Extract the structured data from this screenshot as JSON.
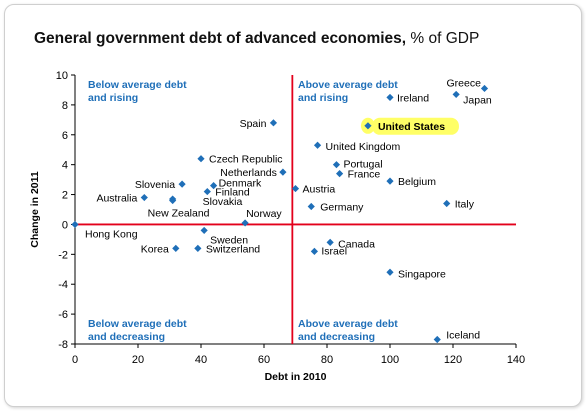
{
  "title": "General government debt of advanced economies,",
  "title_unit": "% of GDP",
  "chart_data": {
    "type": "scatter",
    "title": "General government debt of advanced economies, % of GDP",
    "xlabel": "Debt in 2010",
    "ylabel": "Change in 2011",
    "xlim": [
      0,
      140
    ],
    "ylim": [
      -8,
      10
    ],
    "x_ticks": [
      0,
      20,
      40,
      60,
      80,
      100,
      120,
      140
    ],
    "y_ticks": [
      10,
      8,
      6,
      4,
      2,
      0,
      -2,
      -4,
      -6,
      -8
    ],
    "grid": false,
    "reference_lines": {
      "x": 69,
      "y": 0
    },
    "marker_color": "#1f6fb8",
    "reference_line_color": "#e3001b",
    "highlight_color": "#ffff66",
    "quadrant_labels": [
      {
        "lines": [
          "Below average debt",
          "and rising"
        ]
      },
      {
        "lines": [
          "Above average debt",
          "and rising"
        ]
      },
      {
        "lines": [
          "Below average debt",
          "and decreasing"
        ]
      },
      {
        "lines": [
          "Above average debt",
          "and decreasing"
        ]
      }
    ],
    "points": [
      {
        "label": "Greece",
        "x": 130,
        "y": 9.1
      },
      {
        "label": "Japan",
        "x": 121,
        "y": 8.7
      },
      {
        "label": "Ireland",
        "x": 100,
        "y": 8.5
      },
      {
        "label": "United States",
        "x": 93,
        "y": 6.6,
        "highlight": true
      },
      {
        "label": "Spain",
        "x": 63,
        "y": 6.8
      },
      {
        "label": "United Kingdom",
        "x": 77,
        "y": 5.3
      },
      {
        "label": "Czech Republic",
        "x": 40,
        "y": 4.4
      },
      {
        "label": "Portugal",
        "x": 83,
        "y": 4.0
      },
      {
        "label": "Netherlands",
        "x": 66,
        "y": 3.5
      },
      {
        "label": "France",
        "x": 84,
        "y": 3.4
      },
      {
        "label": "Belgium",
        "x": 100,
        "y": 2.9
      },
      {
        "label": "Slovenia",
        "x": 34,
        "y": 2.7
      },
      {
        "label": "Denmark",
        "x": 44,
        "y": 2.6
      },
      {
        "label": "Austria",
        "x": 70,
        "y": 2.4
      },
      {
        "label": "Finland",
        "x": 42,
        "y": 2.2
      },
      {
        "label": "Australia",
        "x": 22,
        "y": 1.8
      },
      {
        "label": "Slovakia",
        "x": 31,
        "y": 1.7
      },
      {
        "label": "Italy",
        "x": 118,
        "y": 1.4
      },
      {
        "label": "Germany",
        "x": 75,
        "y": 1.2
      },
      {
        "label": "New Zealand",
        "x": 31,
        "y": 1.6
      },
      {
        "label": "Norway",
        "x": 54,
        "y": 0.1
      },
      {
        "label": "Hong Kong",
        "x": 0,
        "y": 0.0
      },
      {
        "label": "Sweden",
        "x": 41,
        "y": -0.4
      },
      {
        "label": "Canada",
        "x": 81,
        "y": -1.2
      },
      {
        "label": "Korea",
        "x": 32,
        "y": -1.6
      },
      {
        "label": "Switzerland",
        "x": 39,
        "y": -1.6
      },
      {
        "label": "Israel",
        "x": 76,
        "y": -1.8
      },
      {
        "label": "Singapore",
        "x": 100,
        "y": -3.2
      },
      {
        "label": "Iceland",
        "x": 115,
        "y": -7.7
      }
    ]
  }
}
